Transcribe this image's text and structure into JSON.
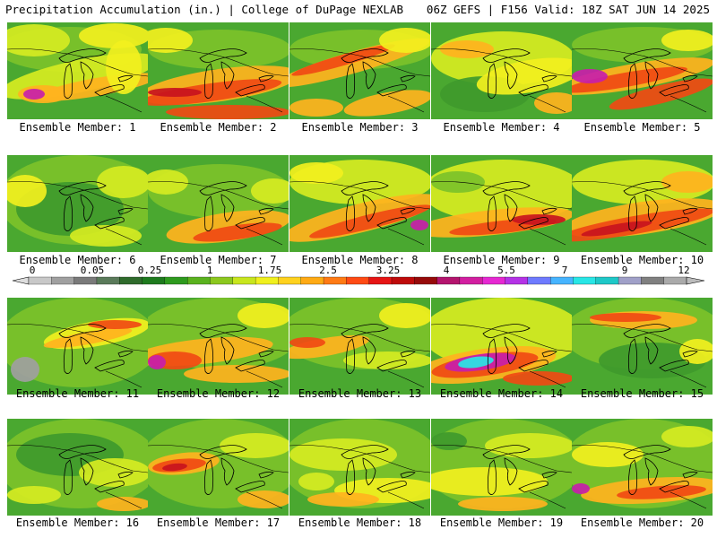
{
  "header": {
    "left": "Precipitation Accumulation (in.) | College of DuPage NEXLAB",
    "right": "06Z GEFS | F156 Valid: 18Z SAT JUN 14 2025"
  },
  "colorbar": {
    "ticks": [
      "0",
      "0.05",
      "0.25",
      "1",
      "1.75",
      "2.5",
      "3.25",
      "4",
      "5.5",
      "7",
      "9",
      "12"
    ],
    "colors": [
      "#c8c8c8",
      "#a0a0a0",
      "#7a7a7a",
      "#5a7a5a",
      "#2f6b2c",
      "#1e7a1e",
      "#2e9a1e",
      "#5ab21e",
      "#8cc81e",
      "#c8e61e",
      "#f0f01e",
      "#ffd21e",
      "#ffaa14",
      "#ff7a14",
      "#ff4a14",
      "#e61414",
      "#be0a0a",
      "#960a0a",
      "#b4146e",
      "#d21ea0",
      "#e628d2",
      "#b432e6",
      "#6e7aff",
      "#46b4ff",
      "#28e6e6",
      "#1ec8c8",
      "#a0a0c8",
      "#808080",
      "#aaaaaa"
    ]
  },
  "members": [
    {
      "label": "Ensemble Member: 1"
    },
    {
      "label": "Ensemble Member: 2"
    },
    {
      "label": "Ensemble Member: 3"
    },
    {
      "label": "Ensemble Member: 4"
    },
    {
      "label": "Ensemble Member: 5"
    },
    {
      "label": "Ensemble Member: 6"
    },
    {
      "label": "Ensemble Member: 7"
    },
    {
      "label": "Ensemble Member: 8"
    },
    {
      "label": "Ensemble Member: 9"
    },
    {
      "label": "Ensemble Member: 10"
    },
    {
      "label": "Ensemble Member: 11"
    },
    {
      "label": "Ensemble Member: 12"
    },
    {
      "label": "Ensemble Member: 13"
    },
    {
      "label": "Ensemble Member: 14"
    },
    {
      "label": "Ensemble Member: 15"
    },
    {
      "label": "Ensemble Member: 16"
    },
    {
      "label": "Ensemble Member: 17"
    },
    {
      "label": "Ensemble Member: 18"
    },
    {
      "label": "Ensemble Member: 19"
    },
    {
      "label": "Ensemble Member: 20"
    }
  ]
}
